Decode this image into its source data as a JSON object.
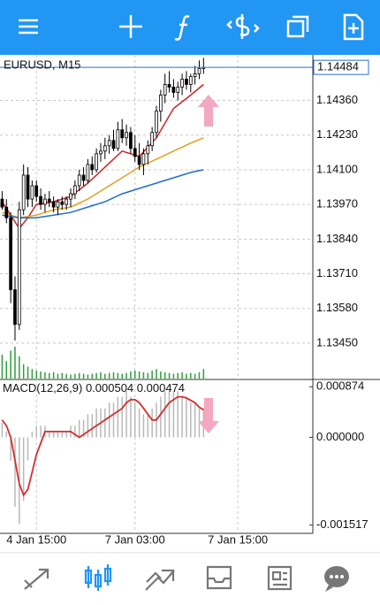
{
  "chart_data": [
    {
      "type": "candlestick",
      "title": "EURUSD, M15",
      "xlim": [
        -0.5,
        72.5
      ],
      "xticks": [
        {
          "value": 8,
          "label": "4 Jan 15:00"
        },
        {
          "value": 31,
          "label": "7 Jan 03:00"
        },
        {
          "value": 55,
          "label": "7 Jan 15:00"
        }
      ],
      "ylim": [
        1.13317,
        1.14531
      ],
      "yticks": [
        {
          "value": 1.1436,
          "label": "1.14360"
        },
        {
          "value": 1.1423,
          "label": "1.14230"
        },
        {
          "value": 1.141,
          "label": "1.14100"
        },
        {
          "value": 1.1397,
          "label": "1.13970"
        },
        {
          "value": 1.1384,
          "label": "1.13840"
        },
        {
          "value": 1.1371,
          "label": "1.13710"
        },
        {
          "value": 1.1358,
          "label": "1.13580"
        },
        {
          "value": 1.1345,
          "label": "1.13450"
        }
      ],
      "current_price": 1.14484,
      "current_price_color": "#2d6fd6",
      "grid": true,
      "candles": [
        [
          1.1399,
          1.1402,
          1.1395,
          1.1396
        ],
        [
          1.1396,
          1.1399,
          1.139,
          1.1392
        ],
        [
          1.1392,
          1.1394,
          1.136,
          1.1365
        ],
        [
          1.1365,
          1.137,
          1.1346,
          1.1352
        ],
        [
          1.1352,
          1.1398,
          1.135,
          1.1395
        ],
        [
          1.1395,
          1.1412,
          1.1393,
          1.1408
        ],
        [
          1.1408,
          1.1411,
          1.1396,
          1.1399
        ],
        [
          1.1399,
          1.1406,
          1.1396,
          1.1404
        ],
        [
          1.1404,
          1.1406,
          1.1398,
          1.14
        ],
        [
          1.14,
          1.1403,
          1.1395,
          1.1397
        ],
        [
          1.1397,
          1.1401,
          1.1394,
          1.1399
        ],
        [
          1.1399,
          1.1402,
          1.1396,
          1.1398
        ],
        [
          1.1398,
          1.14,
          1.1394,
          1.1396
        ],
        [
          1.1396,
          1.1399,
          1.1393,
          1.1398
        ],
        [
          1.1398,
          1.14,
          1.1395,
          1.1397
        ],
        [
          1.1397,
          1.14,
          1.1395,
          1.1399
        ],
        [
          1.1399,
          1.1403,
          1.1396,
          1.1401
        ],
        [
          1.1401,
          1.1406,
          1.1399,
          1.1404
        ],
        [
          1.1404,
          1.141,
          1.1402,
          1.1408
        ],
        [
          1.1408,
          1.1411,
          1.1404,
          1.1406
        ],
        [
          1.1406,
          1.1414,
          1.1405,
          1.1412
        ],
        [
          1.1412,
          1.1415,
          1.1408,
          1.141
        ],
        [
          1.141,
          1.1418,
          1.1409,
          1.1416
        ],
        [
          1.1416,
          1.142,
          1.1413,
          1.1417
        ],
        [
          1.1417,
          1.1422,
          1.1414,
          1.1419
        ],
        [
          1.1419,
          1.1423,
          1.1416,
          1.1421
        ],
        [
          1.1421,
          1.1425,
          1.1417,
          1.1418
        ],
        [
          1.1418,
          1.1428,
          1.1417,
          1.1425
        ],
        [
          1.1425,
          1.1429,
          1.142,
          1.1422
        ],
        [
          1.1422,
          1.1427,
          1.1419,
          1.1424
        ],
        [
          1.1424,
          1.1426,
          1.1416,
          1.1418
        ],
        [
          1.1418,
          1.1423,
          1.1413,
          1.1415
        ],
        [
          1.1415,
          1.142,
          1.141,
          1.1412
        ],
        [
          1.1412,
          1.1418,
          1.1408,
          1.1416
        ],
        [
          1.1416,
          1.1421,
          1.1412,
          1.1419
        ],
        [
          1.1419,
          1.1426,
          1.1417,
          1.1424
        ],
        [
          1.1424,
          1.1434,
          1.1422,
          1.1432
        ],
        [
          1.1432,
          1.144,
          1.1428,
          1.1438
        ],
        [
          1.1438,
          1.1446,
          1.1435,
          1.1442
        ],
        [
          1.1442,
          1.1447,
          1.1439,
          1.1441
        ],
        [
          1.1441,
          1.1444,
          1.1437,
          1.1439
        ],
        [
          1.1439,
          1.1443,
          1.1436,
          1.1441
        ],
        [
          1.1441,
          1.1446,
          1.1438,
          1.1444
        ],
        [
          1.1444,
          1.1447,
          1.144,
          1.1442
        ],
        [
          1.1442,
          1.1446,
          1.1439,
          1.1445
        ],
        [
          1.1445,
          1.1449,
          1.1442,
          1.1446
        ],
        [
          1.1446,
          1.1451,
          1.1444,
          1.1448
        ],
        [
          1.1448,
          1.1452,
          1.1446,
          1.14484
        ]
      ],
      "up_color": "#ffffff",
      "down_color": "#000000",
      "series": [
        {
          "color": "#c62828",
          "x": [
            0,
            2,
            4,
            6,
            8,
            12,
            16,
            20,
            24,
            28,
            32,
            36,
            40,
            44,
            47
          ],
          "values": [
            1.1398,
            1.1393,
            1.1388,
            1.1392,
            1.1397,
            1.1398,
            1.14,
            1.1405,
            1.1411,
            1.1417,
            1.1415,
            1.1422,
            1.1433,
            1.1438,
            1.1442
          ]
        },
        {
          "color": "#e0a020",
          "x": [
            0,
            4,
            8,
            12,
            16,
            20,
            24,
            28,
            32,
            36,
            40,
            44,
            47
          ],
          "values": [
            1.1394,
            1.1392,
            1.1393,
            1.1395,
            1.1396,
            1.1399,
            1.1403,
            1.1407,
            1.1411,
            1.1414,
            1.1417,
            1.142,
            1.1422
          ]
        },
        {
          "color": "#1e6fc8",
          "x": [
            0,
            4,
            8,
            12,
            16,
            20,
            24,
            28,
            32,
            36,
            40,
            44,
            47
          ],
          "values": [
            1.1393,
            1.1392,
            1.1392,
            1.1393,
            1.1394,
            1.1396,
            1.1398,
            1.1401,
            1.1403,
            1.1405,
            1.1407,
            1.1409,
            1.141
          ]
        }
      ],
      "volumes": [
        30,
        22,
        35,
        40,
        28,
        18,
        15,
        12,
        10,
        9,
        8,
        7,
        8,
        6,
        7,
        6,
        5,
        6,
        7,
        6,
        5,
        6,
        7,
        8,
        6,
        7,
        8,
        7,
        6,
        7,
        9,
        10,
        9,
        8,
        7,
        10,
        12,
        9,
        8,
        7,
        6,
        7,
        8,
        6,
        7,
        6,
        8,
        12
      ],
      "volume_color": "#2e9e3a"
    },
    {
      "type": "macd",
      "indicator": "MACD(12,26,9)",
      "xlim": [
        -0.5,
        72.5
      ],
      "ylim": [
        -0.00166,
        0.000985
      ],
      "yticks": [
        0.000874,
        {
          "value": 0,
          "label": "0.000000"
        },
        -0.001517
      ],
      "histogram_color": "#b8b8b8",
      "signal_color": "#d32f2f",
      "histogram": [
        0.00025,
        0.0001,
        -0.0004,
        -0.0012,
        -0.0015,
        -0.0011,
        -0.0004,
        0.0001,
        0.0002,
        0.0002,
        0.0002,
        0.0001,
        0.0001,
        0.0001,
        0.0001,
        0.0001,
        0.0002,
        0.0002,
        0.0003,
        0.0003,
        0.0004,
        0.0004,
        0.0005,
        0.0005,
        0.0005,
        0.0006,
        0.0006,
        0.0007,
        0.0007,
        0.0008,
        0.0007,
        0.0006,
        0.0005,
        0.0004,
        0.0004,
        0.0005,
        0.0006,
        0.0007,
        0.0008,
        0.0008,
        0.0008,
        0.0008,
        0.0007,
        0.0007,
        0.0006,
        0.0006,
        0.0005,
        0.000504
      ],
      "signal": [
        0.0003,
        0.0002,
        0,
        -0.0004,
        -0.0008,
        -0.001,
        -0.0009,
        -0.0006,
        -0.0003,
        -0.0001,
        0.0001,
        0.0001,
        0.0001,
        0.0001,
        0.0001,
        0.0001,
        0.0001,
        5e-05,
        0,
        5e-05,
        0.0001,
        0.00015,
        0.0002,
        0.00025,
        0.0003,
        0.00035,
        0.0004,
        0.00045,
        0.0005,
        0.0006,
        0.00065,
        0.00065,
        0.0006,
        0.0005,
        0.0004,
        0.0003,
        0.0003,
        0.0004,
        0.0005,
        0.0006,
        0.00065,
        0.0007,
        0.0007,
        0.00068,
        0.00064,
        0.0006,
        0.00052,
        0.000474
      ]
    }
  ]
}
